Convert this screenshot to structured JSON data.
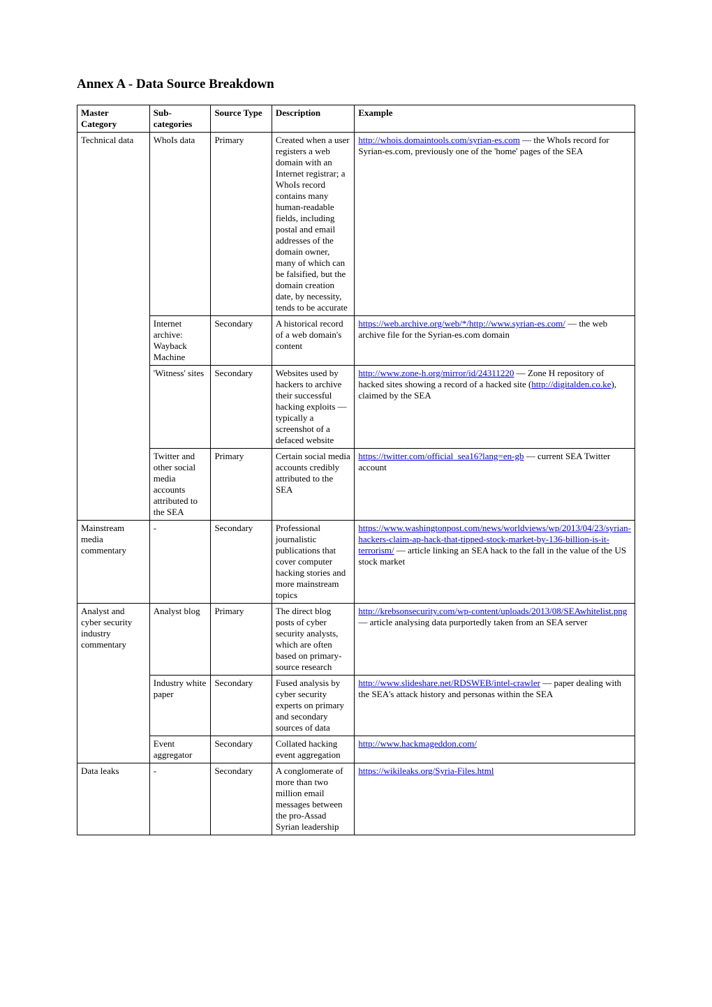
{
  "title": "Annex A - Data Source Breakdown",
  "headers": {
    "master": "Master Category",
    "sub": "Sub-categories",
    "source": "Source Type",
    "desc": "Description",
    "example": "Example"
  },
  "rows": [
    {
      "master": "Technical data",
      "masterSpan": 4,
      "sub": "WhoIs data",
      "source": "Primary",
      "desc": "Created when a user registers a web domain with an Internet registrar; a WhoIs record contains many human-readable fields, including postal and email addresses of the domain owner, many of which can be falsified, but the domain creation date, by necessity, tends to be accurate",
      "exampleLink": "http://whois.domaintools.com/syrian-es.com",
      "exampleText": " — the WhoIs record for Syrian-es.com, previously one of the 'home' pages of the SEA"
    },
    {
      "master": "",
      "sub": "Internet archive: Wayback Machine",
      "source": "Secondary",
      "desc": "A historical record of a web domain's content",
      "exampleLink": "https://web.archive.org/web/*/http://www.syrian-es.com/",
      "exampleText": " — the web archive file for the Syrian-es.com domain"
    },
    {
      "master": "",
      "sub": "'Witness' sites",
      "source": "Secondary",
      "desc": "Websites used by hackers to archive their successful hacking exploits — typically a screenshot of a defaced website",
      "exampleLink": "http://www.zone-h.org/mirror/id/24311220",
      "exampleText": " — Zone H repository of hacked sites showing a record of a hacked site (",
      "exampleLink2": "http://digitalden.co.ke",
      "exampleText2": "), claimed by the SEA"
    },
    {
      "master": "",
      "sub": "Twitter and other social media accounts attributed to the SEA",
      "source": "Primary",
      "desc": "Certain social media accounts credibly attributed to the SEA",
      "exampleLink": "https://twitter.com/official_sea16?lang=en-gb",
      "exampleText": " — current SEA Twitter account"
    },
    {
      "master": "Mainstream media commentary",
      "masterSpan": 1,
      "sub": "-",
      "source": "Secondary",
      "desc": "Professional journalistic publications that cover computer hacking stories and more mainstream topics",
      "exampleLink": "https://www.washingtonpost.com/news/worldviews/wp/2013/04/23/syrian-hackers-claim-ap-hack-that-tipped-stock-market-by-136-billion-is-it-terrorism/",
      "exampleText": " — article linking an SEA hack to the fall in the value of the US stock market"
    },
    {
      "master": "Analyst and cyber security industry commentary",
      "masterSpan": 3,
      "sub": "Analyst blog",
      "source": "Primary",
      "desc": "The direct blog posts of cyber security analysts, which are often based on primary-source research",
      "exampleLink": "http://krebsonsecurity.com/wp-content/uploads/2013/08/SEAwhitelist.png",
      "exampleText": " — article analysing data purportedly taken from an SEA server"
    },
    {
      "master": "",
      "sub": "Industry white paper",
      "source": "Secondary",
      "desc": "Fused analysis by cyber security experts on primary and secondary sources of data",
      "exampleLink": "http://www.slideshare.net/RDSWEB/intel-crawler",
      "exampleText": " — paper dealing with the SEA's attack history and personas within the SEA "
    },
    {
      "master": "",
      "sub": "Event aggregator",
      "source": "Secondary",
      "desc": "Collated hacking event aggregation",
      "exampleLink": "http://www.hackmageddon.com/",
      "exampleText": ""
    },
    {
      "master": "Data leaks",
      "masterSpan": 1,
      "sub": "-",
      "source": "Secondary",
      "desc": "A conglomerate of more than two million email messages between the pro-Assad Syrian leadership",
      "exampleLink": "https://wikileaks.org/Syria-Files.html",
      "exampleText": ""
    }
  ]
}
